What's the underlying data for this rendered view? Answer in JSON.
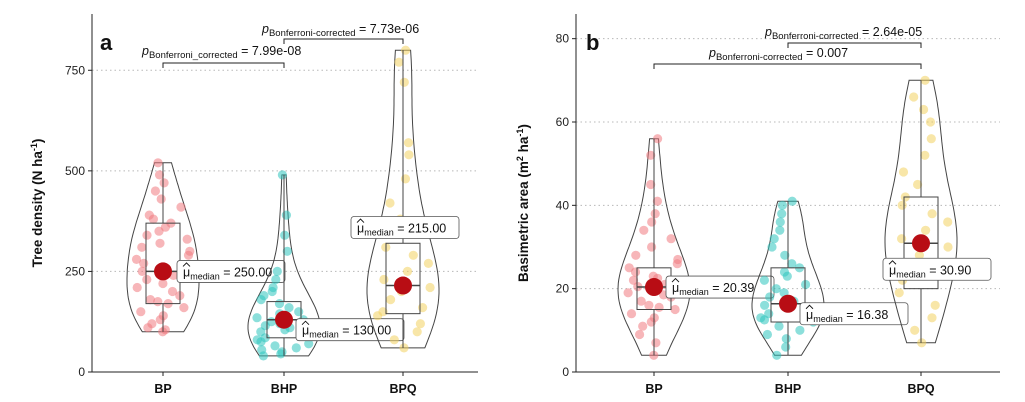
{
  "chart_data": [
    {
      "type": "violin-box",
      "panel_letter": "a",
      "xlabel": "",
      "ylabel": "Tree density (N ha",
      "ylabel_unit_sup": "-1",
      "ylabel_close": ")",
      "categories": [
        "BP",
        "BHP",
        "BPQ"
      ],
      "colors": [
        "#f07a80",
        "#2ec4be",
        "#f2d160"
      ],
      "ylim": [
        0,
        870
      ],
      "yticks": [
        0,
        250,
        500,
        750
      ],
      "grid": "horizontal-dotted",
      "series": [
        {
          "name": "BP",
          "min": 100,
          "q1": 170,
          "median": 250,
          "q3": 370,
          "max": 520,
          "median_label_value": "250.00",
          "points": [
            100,
            105,
            110,
            120,
            130,
            140,
            150,
            160,
            170,
            175,
            180,
            190,
            200,
            210,
            220,
            230,
            240,
            250,
            255,
            260,
            270,
            280,
            290,
            300,
            310,
            320,
            330,
            340,
            350,
            360,
            370,
            380,
            390,
            410,
            430,
            450,
            470,
            490,
            520
          ]
        },
        {
          "name": "BHP",
          "min": 40,
          "q1": 85,
          "median": 130,
          "q3": 175,
          "max": 490,
          "median_label_value": "130.00",
          "points": [
            40,
            45,
            50,
            55,
            60,
            65,
            70,
            75,
            80,
            85,
            90,
            95,
            100,
            105,
            110,
            115,
            120,
            125,
            130,
            135,
            140,
            145,
            150,
            160,
            170,
            180,
            190,
            200,
            210,
            230,
            250,
            300,
            340,
            390,
            490
          ]
        },
        {
          "name": "BPQ",
          "min": 60,
          "q1": 145,
          "median": 215,
          "q3": 320,
          "max": 800,
          "median_label_value": "215.00",
          "points": [
            60,
            80,
            100,
            120,
            140,
            150,
            160,
            180,
            200,
            210,
            220,
            230,
            250,
            270,
            290,
            310,
            350,
            380,
            420,
            480,
            540,
            570,
            720,
            770,
            800
          ]
        }
      ],
      "median_label_prefix": "μ",
      "median_label_sub": "median",
      "comparisons": [
        {
          "from": "BP",
          "to": "BHP",
          "p_label": "p",
          "p_sub": "Bonferroni_corrected",
          "p_value": "7.99e-08"
        },
        {
          "from": "BHP",
          "to": "BPQ",
          "p_label": "p",
          "p_sub": "Bonferroni-corrected",
          "p_value": "7.73e-06"
        }
      ]
    },
    {
      "type": "violin-box",
      "panel_letter": "b",
      "xlabel": "",
      "ylabel": "Basimetric area (m",
      "ylabel_unit_sup": "2",
      "ylabel_mid": " ha",
      "ylabel_unit_sup2": "-1",
      "ylabel_close": ")",
      "categories": [
        "BP",
        "BHP",
        "BPQ"
      ],
      "colors": [
        "#f07a80",
        "#2ec4be",
        "#f2d160"
      ],
      "ylim": [
        0,
        84
      ],
      "yticks": [
        0,
        20,
        40,
        60,
        80
      ],
      "grid": "horizontal-dotted",
      "series": [
        {
          "name": "BP",
          "min": 4,
          "q1": 15,
          "median": 20.39,
          "q3": 25,
          "max": 56,
          "median_label_value": "20.39",
          "points": [
            4,
            7,
            9,
            11,
            12,
            13,
            14,
            15,
            15.5,
            16,
            17,
            18,
            18.5,
            19,
            20,
            20.5,
            21,
            22,
            22.5,
            23,
            24,
            25,
            26,
            27,
            28,
            30,
            32,
            34,
            36,
            38,
            41,
            45,
            52,
            56
          ]
        },
        {
          "name": "BHP",
          "min": 4,
          "q1": 12,
          "median": 16.38,
          "q3": 25,
          "max": 41,
          "median_label_value": "16.38",
          "points": [
            4,
            6,
            8,
            9,
            10,
            11,
            12,
            12.5,
            13,
            14,
            15,
            15.5,
            16,
            16.5,
            17,
            18,
            19,
            20,
            21,
            22,
            23,
            24,
            25,
            26,
            28,
            30,
            32,
            34,
            36,
            38,
            40,
            41
          ]
        },
        {
          "name": "BPQ",
          "min": 7,
          "q1": 20,
          "median": 30.9,
          "q3": 42,
          "max": 70,
          "median_label_value": "30.90",
          "points": [
            7,
            10,
            13,
            16,
            19,
            22,
            24,
            26,
            28,
            30,
            31,
            32,
            34,
            36,
            38,
            40,
            42,
            45,
            48,
            52,
            56,
            60,
            63,
            66,
            70
          ]
        }
      ],
      "median_label_prefix": "μ",
      "median_label_sub": "median",
      "comparisons": [
        {
          "from": "BP",
          "to": "BPQ",
          "p_label": "p",
          "p_sub": "Bonferroni-corrected",
          "p_value": "0.007"
        },
        {
          "from": "BHP",
          "to": "BPQ",
          "p_label": "p",
          "p_sub": "Bonferroni-corrected",
          "p_value": "2.64e-05"
        }
      ]
    }
  ]
}
